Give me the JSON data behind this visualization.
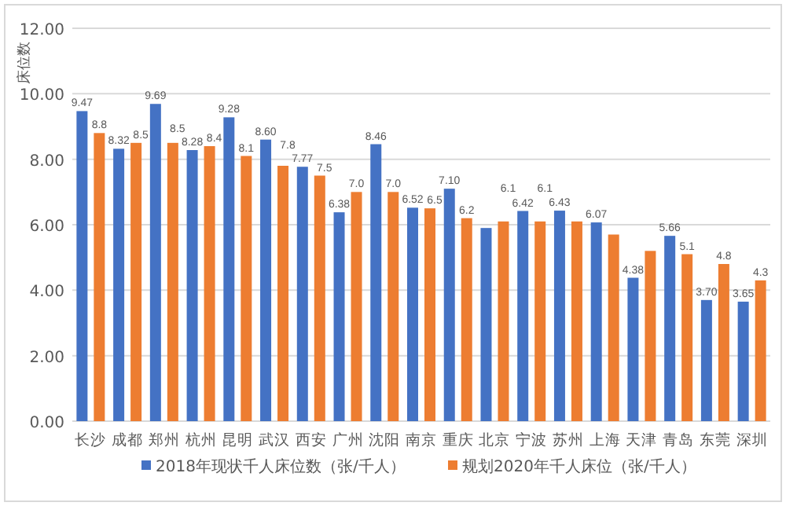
{
  "chart_data": {
    "type": "bar",
    "ylabel": "床位数",
    "categories": [
      "长沙",
      "成都",
      "郑州",
      "杭州",
      "昆明",
      "武汉",
      "西安",
      "广州",
      "沈阳",
      "南京",
      "重庆",
      "北京",
      "宁波",
      "苏州",
      "上海",
      "天津",
      "青岛",
      "东莞",
      "深圳"
    ],
    "series": [
      {
        "name": "2018年现状千人床位数（张/千人）",
        "color": "#4472c4",
        "values": [
          9.47,
          8.32,
          9.69,
          8.28,
          9.28,
          8.6,
          7.77,
          6.38,
          8.46,
          6.52,
          7.1,
          5.9,
          6.42,
          6.43,
          6.07,
          4.38,
          5.66,
          3.7,
          3.65
        ],
        "value_labels": [
          "9.47",
          "8.32",
          "9.69",
          "8.28",
          "9.28",
          "8.60",
          "7.77",
          "6.38",
          "8.46",
          "6.52",
          "7.10",
          null,
          "6.42",
          "6.43",
          "6.07",
          "4.38",
          "5.66",
          "3.70",
          "3.65"
        ]
      },
      {
        "name": "规划2020年千人床位（张/千人）",
        "color": "#ed7d31",
        "values": [
          8.8,
          8.5,
          8.5,
          8.4,
          8.1,
          7.8,
          7.5,
          7.0,
          7.0,
          6.5,
          6.2,
          6.1,
          6.1,
          6.1,
          5.7,
          5.2,
          5.1,
          4.8,
          4.3
        ],
        "value_labels": [
          "8.8",
          "8.5",
          "8.5",
          "8.4",
          "8.1",
          "7.8",
          "7.5",
          "7.0",
          "7.0",
          "6.5",
          "6.2",
          "6.1",
          "6.1",
          null,
          null,
          null,
          "5.1",
          "4.8",
          "4.3"
        ]
      }
    ],
    "ylim": [
      0,
      12
    ],
    "yticks": [
      {
        "value": 0,
        "label": "0.00"
      },
      {
        "value": 2,
        "label": "2.00"
      },
      {
        "value": 4,
        "label": "4.00"
      },
      {
        "value": 6,
        "label": "6.00"
      },
      {
        "value": 8,
        "label": "8.00"
      },
      {
        "value": 10,
        "label": "10.00"
      },
      {
        "value": 12,
        "label": "12.00"
      }
    ],
    "grid": "y",
    "legend": "bottom"
  }
}
